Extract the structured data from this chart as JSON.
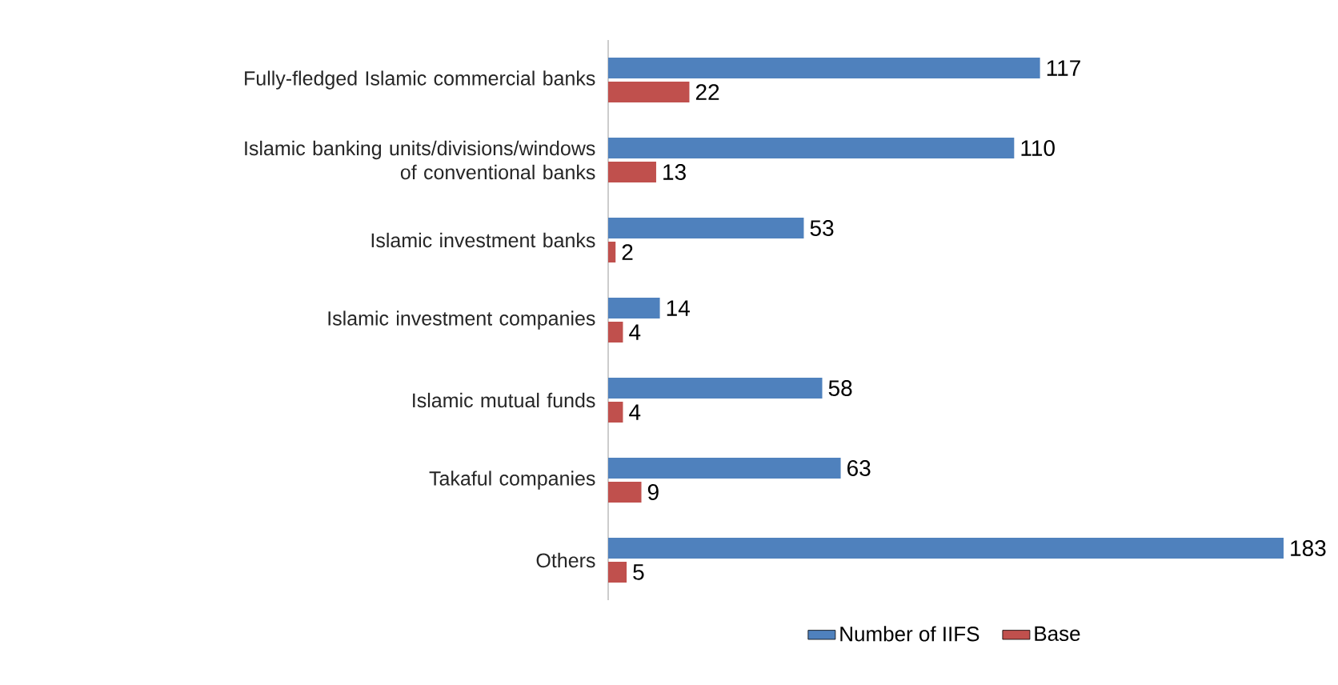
{
  "chart_data": {
    "type": "bar",
    "orientation": "horizontal",
    "categories": [
      "Fully-fledged Islamic commercial banks",
      "Islamic banking units/divisions/windows of conventional banks",
      "Islamic investment banks",
      "Islamic investment companies",
      "Islamic mutual funds",
      "Takaful companies",
      "Others"
    ],
    "series": [
      {
        "name": "Number of IIFS",
        "color": "#4f81bd",
        "values": [
          117,
          110,
          53,
          14,
          58,
          63,
          183
        ]
      },
      {
        "name": "Base",
        "color": "#c0504d",
        "values": [
          22,
          13,
          2,
          4,
          4,
          9,
          5
        ]
      }
    ],
    "data_labels": true,
    "legend": "bottom"
  }
}
